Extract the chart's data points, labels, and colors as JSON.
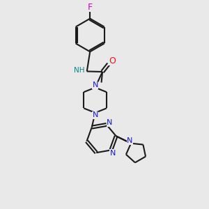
{
  "bg_color": "#e9e9e9",
  "bond_color": "#1a1a1a",
  "N_color": "#1515ee",
  "O_color": "#ee1515",
  "F_color": "#cc00cc",
  "H_color": "#008888",
  "lw": 1.5,
  "fs": 8.0,
  "fig_w": 3.0,
  "fig_h": 3.0,
  "dpi": 100,
  "xlim": [
    0,
    10
  ],
  "ylim": [
    0,
    10
  ]
}
